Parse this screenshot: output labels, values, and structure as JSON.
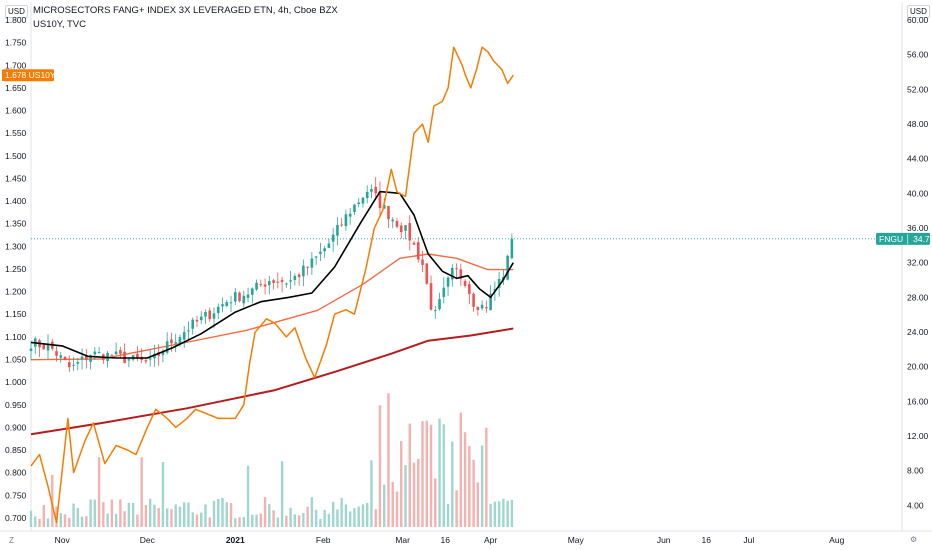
{
  "header": {
    "title": "MICROSECTORS FANG+ INDEX 3X LEVERAGED ETN, 4h, Cboe BZX",
    "subtitle": "US10Y, TVC"
  },
  "corner": {
    "left_scale": "USD",
    "right_scale": "USD",
    "bottom_left": "Z",
    "bottom_right": "⚙"
  },
  "colors": {
    "candle_up": "#26a69a",
    "candle_down": "#ef5350",
    "us10y": "#f57c00",
    "ma_fast": "#000000",
    "ma_mid": "#f26b43",
    "ma_slow": "#b71c1c",
    "volume_up": "#9fd6cf",
    "volume_down": "#f3b1b0",
    "price_tag": "#26a69a"
  },
  "chart_data": {
    "type": "line",
    "title": "MICROSECTORS FANG+ INDEX 3X LEVERAGED ETN, 4h, Cboe BZX",
    "x_tick_labels": [
      "Nov",
      "Dec",
      "2021",
      "Feb",
      "Mar",
      "16",
      "Apr",
      "May",
      "Jun",
      "16",
      "Jul",
      "Aug"
    ],
    "x_tick_dates": [
      "2020-11-01",
      "2020-12-01",
      "2021-01-01",
      "2021-02-01",
      "2021-03-01",
      "2021-03-16",
      "2021-04-01",
      "2021-05-01",
      "2021-06-01",
      "2021-06-16",
      "2021-07-01",
      "2021-08-01"
    ],
    "x_range": [
      "2020-10-21",
      "2021-08-24"
    ],
    "left_axis": {
      "label": "USD",
      "ticks": [
        "1.800",
        "1.750",
        "1.700",
        "1.650",
        "1.600",
        "1.550",
        "1.500",
        "1.450",
        "1.400",
        "1.350",
        "1.300",
        "1.250",
        "1.200",
        "1.150",
        "1.100",
        "1.050",
        "1.000",
        "0.950",
        "0.900",
        "0.850",
        "0.800",
        "0.750",
        "0.700"
      ],
      "range": [
        0.68,
        1.8
      ]
    },
    "right_axis": {
      "label": "USD",
      "ticks": [
        "60.00",
        "56.00",
        "52.00",
        "48.00",
        "44.00",
        "40.00",
        "36.00",
        "32.00",
        "28.00",
        "24.00",
        "20.00",
        "16.00",
        "12.00",
        "8.00",
        "4.00"
      ],
      "range": [
        1.5,
        60
      ]
    },
    "last_values": {
      "US10Y": "1.678",
      "FNGU": "34.75"
    },
    "series": [
      {
        "name": "FNGU",
        "axis": "right",
        "kind": "close",
        "x": [
          "2020-10-21",
          "2020-10-28",
          "2020-11-04",
          "2020-11-11",
          "2020-11-18",
          "2020-11-25",
          "2020-12-02",
          "2020-12-09",
          "2020-12-16",
          "2020-12-23",
          "2020-12-30",
          "2021-01-06",
          "2021-01-13",
          "2021-01-20",
          "2021-01-27",
          "2021-02-03",
          "2021-02-10",
          "2021-02-17",
          "2021-02-24",
          "2021-03-03",
          "2021-03-08",
          "2021-03-12",
          "2021-03-16",
          "2021-03-19",
          "2021-03-23",
          "2021-03-26",
          "2021-03-30",
          "2021-04-02",
          "2021-04-06",
          "2021-04-09"
        ],
        "y": [
          22.8,
          22.2,
          19.7,
          21.5,
          21.3,
          20.8,
          20.4,
          22.8,
          24.6,
          26.1,
          27.8,
          28.6,
          30.0,
          29.8,
          31.6,
          34.2,
          37.8,
          40.5,
          37.6,
          35.3,
          31.8,
          25.5,
          29.0,
          31.2,
          30.0,
          27.5,
          26.8,
          28.7,
          31.0,
          34.75
        ]
      },
      {
        "name": "US10Y",
        "axis": "left",
        "x": [
          "2020-10-21",
          "2020-10-24",
          "2020-10-27",
          "2020-10-30",
          "2020-11-03",
          "2020-11-05",
          "2020-11-09",
          "2020-11-12",
          "2020-11-16",
          "2020-11-20",
          "2020-11-24",
          "2020-11-27",
          "2020-12-01",
          "2020-12-04",
          "2020-12-08",
          "2020-12-11",
          "2020-12-15",
          "2020-12-18",
          "2020-12-22",
          "2020-12-26",
          "2020-12-30",
          "2021-01-01",
          "2021-01-04",
          "2021-01-06",
          "2021-01-08",
          "2021-01-12",
          "2021-01-15",
          "2021-01-19",
          "2021-01-22",
          "2021-01-26",
          "2021-01-29",
          "2021-02-02",
          "2021-02-05",
          "2021-02-09",
          "2021-02-12",
          "2021-02-16",
          "2021-02-19",
          "2021-02-22",
          "2021-02-25",
          "2021-02-27",
          "2021-03-02",
          "2021-03-05",
          "2021-03-08",
          "2021-03-10",
          "2021-03-12",
          "2021-03-15",
          "2021-03-17",
          "2021-03-19",
          "2021-03-22",
          "2021-03-23",
          "2021-03-25",
          "2021-03-27",
          "2021-03-29",
          "2021-03-31",
          "2021-04-02",
          "2021-04-05",
          "2021-04-07",
          "2021-04-09"
        ],
        "y": [
          0.815,
          0.84,
          0.77,
          0.69,
          0.92,
          0.8,
          0.87,
          0.91,
          0.82,
          0.86,
          0.85,
          0.84,
          0.9,
          0.94,
          0.92,
          0.9,
          0.92,
          0.94,
          0.93,
          0.92,
          0.92,
          0.92,
          0.95,
          1.04,
          1.11,
          1.14,
          1.13,
          1.1,
          1.12,
          1.05,
          1.01,
          1.08,
          1.15,
          1.16,
          1.15,
          1.25,
          1.34,
          1.38,
          1.47,
          1.42,
          1.41,
          1.55,
          1.57,
          1.53,
          1.61,
          1.62,
          1.65,
          1.74,
          1.7,
          1.68,
          1.65,
          1.69,
          1.74,
          1.73,
          1.71,
          1.69,
          1.66,
          1.678
        ]
      },
      {
        "name": "MA fast",
        "axis": "right",
        "x": [
          "2020-10-21",
          "2020-11-01",
          "2020-11-10",
          "2020-11-20",
          "2020-12-01",
          "2020-12-10",
          "2020-12-20",
          "2021-01-01",
          "2021-01-10",
          "2021-01-20",
          "2021-01-28",
          "2021-02-05",
          "2021-02-14",
          "2021-02-21",
          "2021-02-28",
          "2021-03-05",
          "2021-03-10",
          "2021-03-15",
          "2021-03-20",
          "2021-03-24",
          "2021-03-28",
          "2021-04-01",
          "2021-04-05",
          "2021-04-09"
        ],
        "y": [
          22.8,
          22.4,
          21.2,
          21.0,
          21.0,
          22.2,
          23.8,
          26.3,
          27.5,
          28.0,
          28.5,
          31.5,
          36.5,
          40.2,
          40.0,
          37.5,
          33.0,
          31.0,
          30.2,
          30.5,
          29.0,
          28.0,
          29.8,
          32.0
        ]
      },
      {
        "name": "MA mid",
        "axis": "right",
        "x": [
          "2020-10-21",
          "2020-11-15",
          "2020-12-10",
          "2021-01-05",
          "2021-01-30",
          "2021-02-15",
          "2021-02-28",
          "2021-03-10",
          "2021-03-20",
          "2021-03-31",
          "2021-04-09"
        ],
        "y": [
          20.8,
          20.9,
          22.5,
          24.2,
          26.5,
          29.5,
          32.5,
          33.0,
          32.5,
          31.2,
          31.2
        ]
      },
      {
        "name": "MA slow",
        "axis": "right",
        "x": [
          "2020-10-21",
          "2020-11-15",
          "2020-12-15",
          "2021-01-15",
          "2021-02-05",
          "2021-02-25",
          "2021-03-10",
          "2021-03-25",
          "2021-04-09"
        ],
        "y": [
          12.2,
          13.5,
          15.2,
          17.3,
          19.4,
          21.5,
          23.0,
          23.6,
          24.4
        ]
      }
    ]
  }
}
